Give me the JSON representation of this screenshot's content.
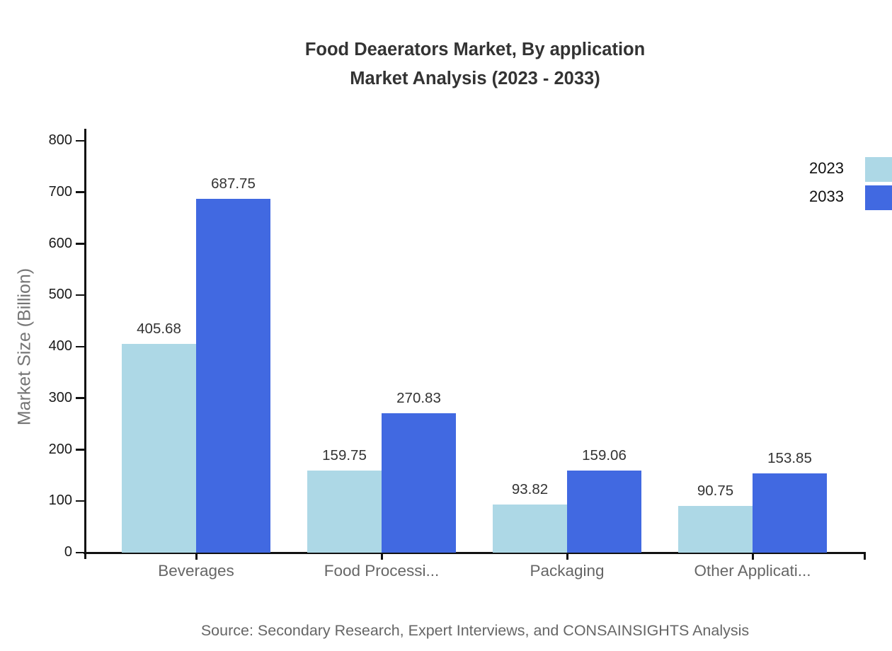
{
  "title": {
    "line1": "Food Deaerators Market, By application",
    "line2": "Market Analysis (2023 - 2033)"
  },
  "source_note": "Source: Secondary Research, Expert Interviews, and CONSAINSIGHTS Analysis",
  "legend": {
    "items": [
      {
        "label": "2023",
        "color": "#add8e6"
      },
      {
        "label": "2033",
        "color": "#4169e1"
      }
    ]
  },
  "chart_data": {
    "type": "bar",
    "title": "Food Deaerators Market, By application Market Analysis (2023 - 2033)",
    "categories": [
      "Beverages",
      "Food Processi...",
      "Packaging",
      "Other Applicati..."
    ],
    "series": [
      {
        "name": "2023",
        "color": "#add8e6",
        "values": [
          405.68,
          159.75,
          93.82,
          90.75
        ]
      },
      {
        "name": "2033",
        "color": "#4169e1",
        "values": [
          687.75,
          270.83,
          159.06,
          153.85
        ]
      }
    ],
    "xlabel": "",
    "ylabel": "Market Size (Billion)",
    "ylim": [
      0,
      800
    ],
    "ytick_step": 100,
    "yticks": [
      0,
      100,
      200,
      300,
      400,
      500,
      600,
      700,
      800
    ],
    "grid": false,
    "legend_position": "top-right",
    "value_labels": true,
    "value_label_decimals": 2
  },
  "colors": {
    "background": "#ffffff",
    "axis": "#111111",
    "title_text": "#333333",
    "value_label_text": "#333333",
    "ytick_text": "#1a1a1a",
    "category_text": "#666666",
    "legend_text": "#111111",
    "axis_title_text": "#757575",
    "source_text": "#666666"
  }
}
